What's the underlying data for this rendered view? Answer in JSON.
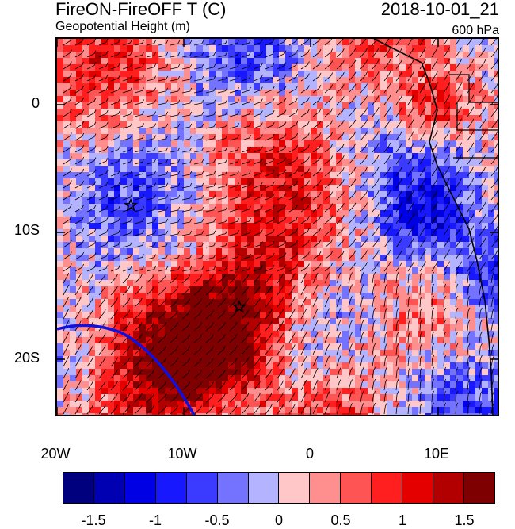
{
  "header": {
    "title_left": "FireON-FireOFF T (C)",
    "subtitle_left": "Geopotential Height (m)",
    "title_right": "2018-10-01_21",
    "subtitle_right": "600 hPa"
  },
  "map": {
    "projection": "lat-lon",
    "lon_range": [
      -20,
      15
    ],
    "lat_range": [
      -25,
      5
    ],
    "x_ticks": [
      "20W",
      "10W",
      "0",
      "10E"
    ],
    "y_ticks": [
      "0",
      "10S",
      "20S"
    ],
    "overlay": "wind barbs",
    "markers": [
      "star",
      "star"
    ],
    "contour_color": "#1010e0"
  },
  "colorbar": {
    "colors": [
      "#00007f",
      "#0000b2",
      "#0000e5",
      "#1818ff",
      "#3b3bff",
      "#7373ff",
      "#b3b3ff",
      "#ffc7c7",
      "#ff8f8f",
      "#ff5454",
      "#ff1f1f",
      "#e50000",
      "#b20000",
      "#7f0000"
    ],
    "labels": [
      "-1.5",
      "-1",
      "-0.5",
      "0",
      "0.5",
      "1",
      "1.5"
    ]
  }
}
